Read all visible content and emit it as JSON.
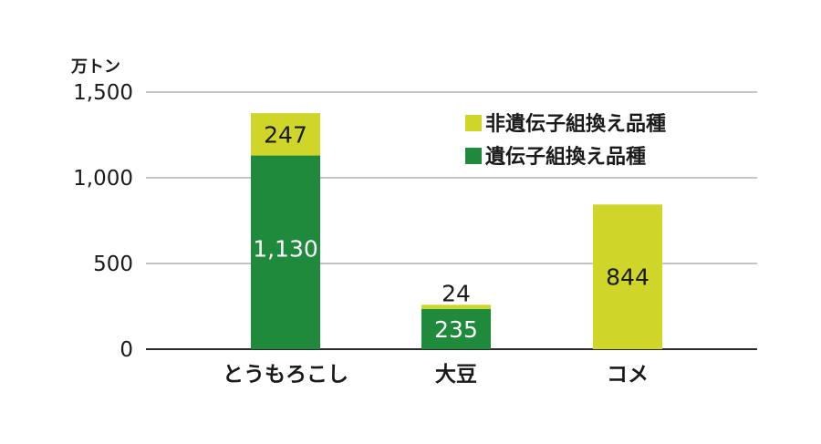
{
  "chart_data": {
    "type": "bar",
    "stacked": true,
    "unit_label": "万トン",
    "categories": [
      "とうもろこし",
      "大豆",
      "コメ"
    ],
    "series": [
      {
        "name": "遺伝子組換え品種",
        "color": "#1f8a3b",
        "values": [
          1130,
          235,
          0
        ]
      },
      {
        "name": "非遺伝子組換え品種",
        "color": "#cfd629",
        "values": [
          247,
          24,
          844
        ]
      }
    ],
    "ylim": [
      0,
      1500
    ],
    "yticks": [
      0,
      500,
      1000,
      1500
    ],
    "ytick_labels": [
      "0",
      "500",
      "1,000",
      "1,500"
    ],
    "data_labels": [
      [
        "1,130",
        "235",
        ""
      ],
      [
        "247",
        "24",
        "844"
      ]
    ],
    "grid": true,
    "legend_position": "top-right"
  }
}
